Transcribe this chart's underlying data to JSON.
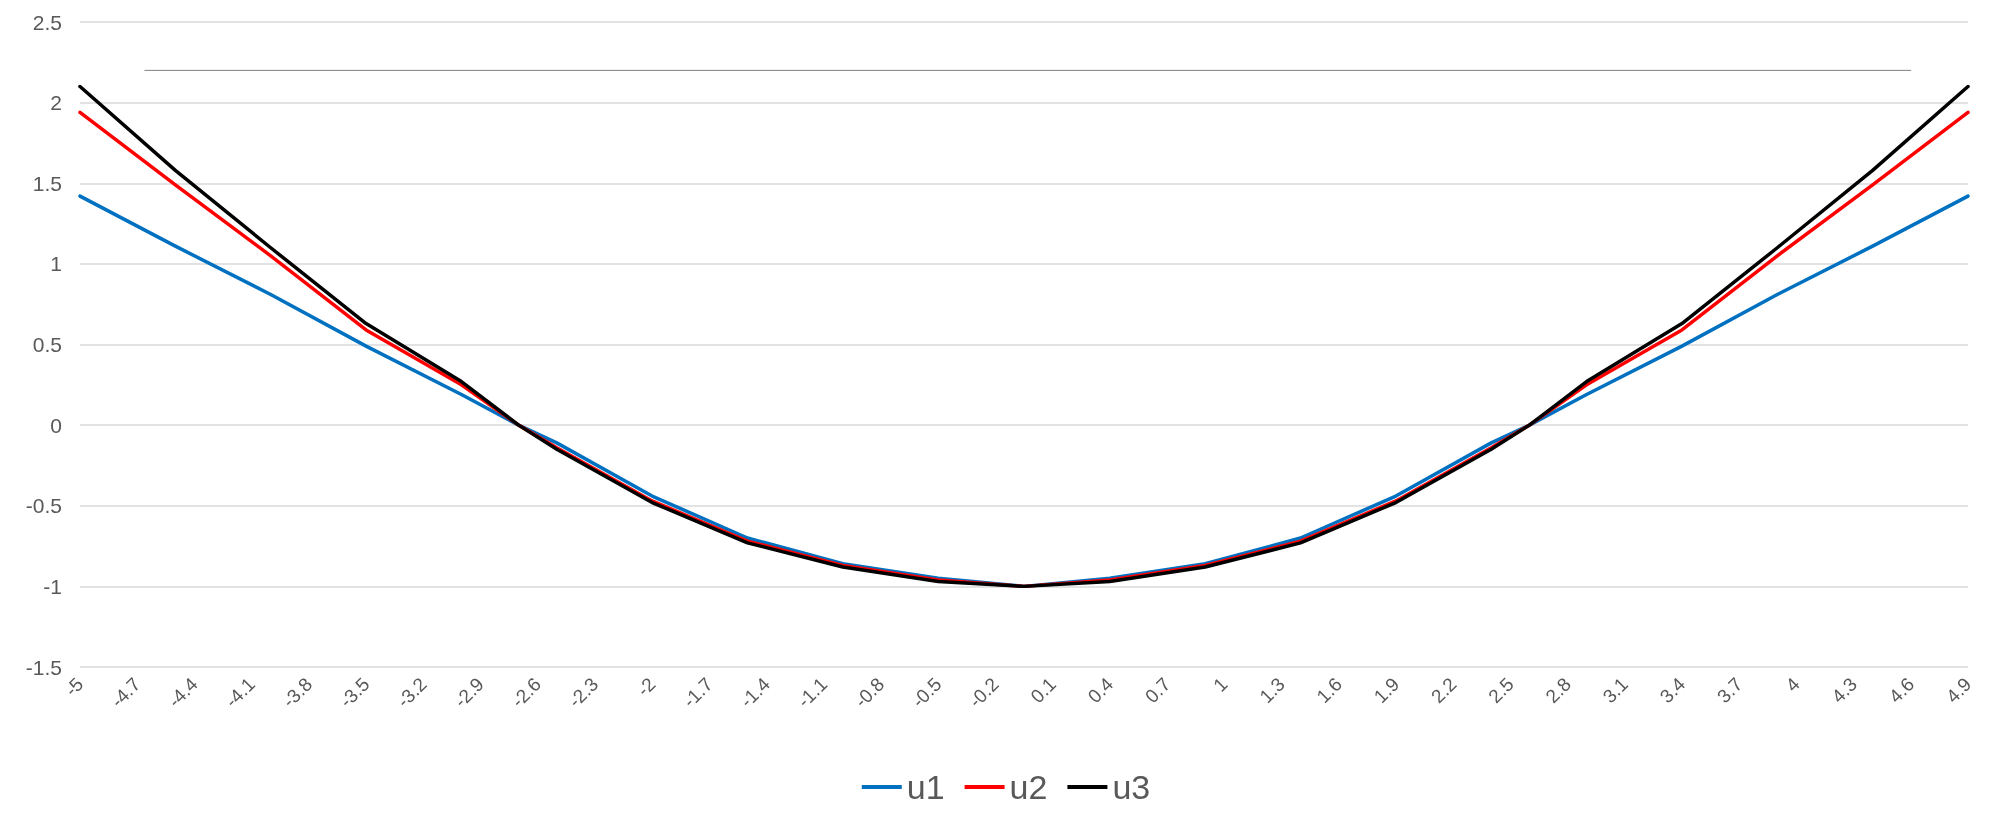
{
  "chart_data": {
    "type": "line",
    "xlim": [
      -5,
      4.9
    ],
    "xticks": [
      -5,
      -4.7,
      -4.4,
      -4.1,
      -3.8,
      -3.5,
      -3.2,
      -2.9,
      -2.6,
      -2.3,
      -2,
      -1.7,
      -1.4,
      -1.1,
      -0.8,
      -0.5,
      -0.2,
      0.1,
      0.4,
      0.7,
      1,
      1.3,
      1.6,
      1.9,
      2.2,
      2.5,
      2.8,
      3.1,
      3.4,
      3.7,
      4,
      4.3,
      4.6,
      4.9
    ],
    "ylim": [
      -1.5,
      2.5
    ],
    "yticks": [
      -1.5,
      -1,
      -0.5,
      0,
      0.5,
      1,
      1.5,
      2,
      2.5
    ],
    "grid": "y",
    "legend": "bottom",
    "marker": "none",
    "line_style": "solid",
    "series": [
      {
        "name": "u1",
        "color": "#0070c0",
        "x": [
          -5,
          -4.5,
          -4,
          -3.5,
          -3,
          -2.7,
          -2.5,
          -2,
          -1.5,
          -1,
          -0.5,
          -0.05,
          0.4,
          0.9,
          1.4,
          1.9,
          2.4,
          2.6,
          2.9,
          3.4,
          3.9,
          4.4,
          4.9
        ],
        "values": [
          1.42,
          1.11,
          0.81,
          0.49,
          0.19,
          0,
          -0.11,
          -0.44,
          -0.7,
          -0.86,
          -0.95,
          -1,
          -0.95,
          -0.86,
          -0.7,
          -0.44,
          -0.11,
          0,
          0.19,
          0.49,
          0.81,
          1.11,
          1.42
        ]
      },
      {
        "name": "u2",
        "color": "#ff0000",
        "x": [
          -5,
          -4.5,
          -4,
          -3.5,
          -3,
          -2.7,
          -2.5,
          -2,
          -1.5,
          -1,
          -0.5,
          -0.05,
          0.4,
          0.9,
          1.4,
          1.9,
          2.4,
          2.6,
          2.9,
          3.4,
          3.9,
          4.4,
          4.9
        ],
        "values": [
          1.94,
          1.49,
          1.05,
          0.59,
          0.25,
          0,
          -0.14,
          -0.47,
          -0.72,
          -0.87,
          -0.96,
          -1,
          -0.96,
          -0.87,
          -0.72,
          -0.47,
          -0.14,
          0,
          0.25,
          0.59,
          1.05,
          1.49,
          1.94
        ]
      },
      {
        "name": "u3",
        "color": "#000000",
        "x": [
          -5,
          -4.5,
          -4,
          -3.5,
          -3,
          -2.7,
          -2.5,
          -2,
          -1.5,
          -1,
          -0.5,
          -0.05,
          0.4,
          0.9,
          1.4,
          1.9,
          2.4,
          2.6,
          2.9,
          3.4,
          3.9,
          4.4,
          4.9
        ],
        "values": [
          2.1,
          1.58,
          1.1,
          0.63,
          0.27,
          0,
          -0.15,
          -0.48,
          -0.73,
          -0.88,
          -0.97,
          -1,
          -0.97,
          -0.88,
          -0.73,
          -0.48,
          -0.15,
          0,
          0.27,
          0.63,
          1.1,
          1.58,
          2.1
        ]
      },
      {
        "color": "#808080",
        "x": [
          -4.66,
          4.6
        ],
        "values": [
          2.2,
          2.2
        ]
      }
    ]
  }
}
